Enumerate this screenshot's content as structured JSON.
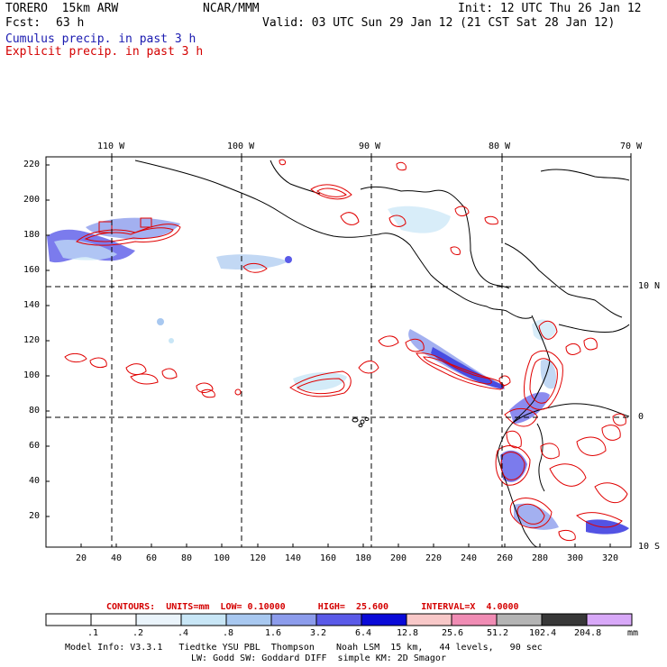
{
  "header": {
    "model_name": "TORERO  15km ARW",
    "center": "NCAR/MMM",
    "init": "Init: 12 UTC Thu 26 Jan 12",
    "fcst_label": "Fcst:",
    "fcst_value": "63 h",
    "valid": "Valid: 03 UTC Sun 29 Jan 12 (21 CST Sat 28 Jan 12)",
    "legend_cumulus": "Cumulus precip. in past 3 h",
    "legend_explicit": "Explicit precip. in past 3 h"
  },
  "map": {
    "top_lon_labels": [
      "110 W",
      "100 W",
      "90 W",
      "80 W",
      "70 W"
    ],
    "right_lat_labels": [
      "10 N",
      "0",
      "10 S"
    ],
    "y_ticks": [
      "220",
      "200",
      "180",
      "160",
      "140",
      "120",
      "100",
      "80",
      "60",
      "40",
      "20"
    ],
    "x_ticks": [
      "20",
      "40",
      "60",
      "80",
      "100",
      "120",
      "140",
      "160",
      "180",
      "200",
      "220",
      "240",
      "260",
      "280",
      "300",
      "320"
    ],
    "grid_domain": {
      "x_max": 330,
      "y_max": 225
    }
  },
  "contours_line": {
    "label": "CONTOURS:  UNITS=mm  LOW= 0.10000      HIGH=  25.600      INTERVAL=X  4.0000"
  },
  "colorbar": {
    "unit": "mm",
    "labels": [
      ".1",
      ".2",
      ".4",
      ".8",
      "1.6",
      "3.2",
      "6.4",
      "12.8",
      "25.6",
      "51.2",
      "102.4",
      "204.8"
    ],
    "colors": [
      "#ffffff",
      "#ffffff",
      "#eaf4fb",
      "#c8e6f6",
      "#a8c8f0",
      "#8c9cec",
      "#5a5ae8",
      "#0a0ad8",
      "#f8c8c8",
      "#f08cb4",
      "#b4b4b4",
      "#383838",
      "#d8a8f8"
    ]
  },
  "footer": {
    "line1": "Model Info: V3.3.1   Tiedtke YSU PBL  Thompson    Noah LSM  15 km,   44 levels,   90 sec",
    "line2": "LW: Godd SW: Goddard DIFF  simple KM: 2D Smagor"
  }
}
